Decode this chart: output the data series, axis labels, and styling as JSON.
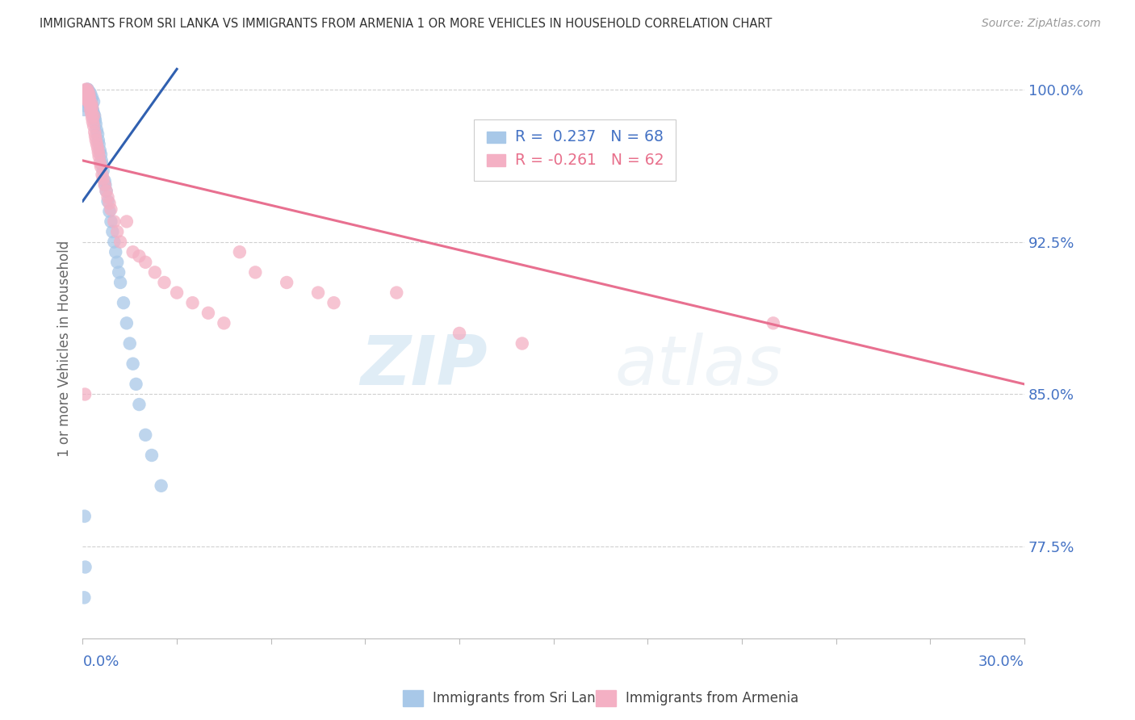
{
  "title": "IMMIGRANTS FROM SRI LANKA VS IMMIGRANTS FROM ARMENIA 1 OR MORE VEHICLES IN HOUSEHOLD CORRELATION CHART",
  "source": "Source: ZipAtlas.com",
  "ylabel_label": "1 or more Vehicles in Household",
  "xlim": [
    0.0,
    30.0
  ],
  "ylim": [
    73.0,
    101.5
  ],
  "sri_lanka_color": "#a8c8e8",
  "armenia_color": "#f4b0c4",
  "sri_lanka_line_color": "#3060b0",
  "armenia_line_color": "#e87090",
  "sri_lanka_x": [
    0.05,
    0.08,
    0.1,
    0.1,
    0.12,
    0.13,
    0.15,
    0.15,
    0.18,
    0.18,
    0.2,
    0.2,
    0.22,
    0.22,
    0.25,
    0.25,
    0.28,
    0.28,
    0.3,
    0.3,
    0.32,
    0.35,
    0.35,
    0.38,
    0.4,
    0.42,
    0.45,
    0.48,
    0.5,
    0.52,
    0.55,
    0.58,
    0.6,
    0.62,
    0.65,
    0.7,
    0.72,
    0.75,
    0.8,
    0.85,
    0.9,
    0.95,
    1.0,
    1.05,
    1.1,
    1.15,
    1.2,
    1.3,
    1.4,
    1.5,
    1.6,
    1.7,
    1.8,
    2.0,
    2.2,
    2.5,
    0.05,
    0.07,
    0.09,
    0.11,
    0.14,
    0.16,
    0.19,
    0.23,
    0.27,
    0.33,
    0.36,
    0.06
  ],
  "sri_lanka_y": [
    75.0,
    76.5,
    99.8,
    99.5,
    99.7,
    99.9,
    99.6,
    100.0,
    99.4,
    99.8,
    99.5,
    99.9,
    99.3,
    99.7,
    99.1,
    99.8,
    99.0,
    99.5,
    99.2,
    99.6,
    99.0,
    98.8,
    99.4,
    98.7,
    98.5,
    98.3,
    98.0,
    97.8,
    97.5,
    97.3,
    97.0,
    96.8,
    96.5,
    96.3,
    96.0,
    95.5,
    95.3,
    95.0,
    94.5,
    94.0,
    93.5,
    93.0,
    92.5,
    92.0,
    91.5,
    91.0,
    90.5,
    89.5,
    88.5,
    87.5,
    86.5,
    85.5,
    84.5,
    83.0,
    82.0,
    80.5,
    99.0,
    99.2,
    99.4,
    99.6,
    99.8,
    100.0,
    99.5,
    99.3,
    99.1,
    98.9,
    98.6,
    79.0
  ],
  "armenia_x": [
    0.05,
    0.08,
    0.1,
    0.1,
    0.12,
    0.13,
    0.15,
    0.15,
    0.18,
    0.18,
    0.2,
    0.2,
    0.22,
    0.22,
    0.25,
    0.25,
    0.28,
    0.28,
    0.3,
    0.3,
    0.32,
    0.35,
    0.35,
    0.38,
    0.4,
    0.42,
    0.45,
    0.48,
    0.5,
    0.52,
    0.55,
    0.58,
    0.62,
    0.65,
    0.7,
    0.75,
    0.8,
    0.85,
    0.9,
    1.0,
    1.1,
    1.2,
    1.4,
    1.6,
    1.8,
    2.0,
    2.3,
    2.6,
    3.0,
    3.5,
    4.0,
    4.5,
    5.0,
    5.5,
    6.5,
    7.5,
    8.0,
    10.0,
    12.0,
    14.0,
    22.0,
    0.07
  ],
  "armenia_y": [
    99.9,
    99.7,
    99.8,
    100.0,
    99.6,
    99.5,
    99.9,
    100.0,
    99.7,
    99.4,
    99.5,
    99.8,
    99.3,
    99.6,
    99.2,
    99.0,
    98.8,
    99.3,
    98.6,
    99.1,
    98.4,
    98.2,
    98.7,
    97.9,
    97.7,
    97.5,
    97.3,
    97.1,
    96.9,
    96.7,
    96.4,
    96.2,
    95.8,
    95.6,
    95.3,
    95.0,
    94.7,
    94.4,
    94.1,
    93.5,
    93.0,
    92.5,
    93.5,
    92.0,
    91.8,
    91.5,
    91.0,
    90.5,
    90.0,
    89.5,
    89.0,
    88.5,
    92.0,
    91.0,
    90.5,
    90.0,
    89.5,
    90.0,
    88.0,
    87.5,
    88.5,
    85.0
  ],
  "sri_trendline_x": [
    0.0,
    3.0
  ],
  "sri_trendline_y": [
    94.5,
    101.0
  ],
  "arm_trendline_x": [
    0.0,
    30.0
  ],
  "arm_trendline_y": [
    96.5,
    85.5
  ],
  "y_ticks": [
    77.5,
    85.0,
    92.5,
    100.0
  ],
  "y_tick_labels": [
    "77.5%",
    "85.0%",
    "92.5%",
    "100.0%"
  ],
  "legend_r_sri": "R =  0.237",
  "legend_n_sri": "N = 68",
  "legend_r_arm": "R = -0.261",
  "legend_n_arm": "N = 62",
  "watermark_zip": "ZIP",
  "watermark_atlas": "atlas",
  "title_color": "#333333",
  "source_color": "#999999",
  "tick_label_color": "#4472c4",
  "axis_label_color": "#666666",
  "grid_color": "#d0d0d0",
  "legend_text_color_sri": "#4472c4",
  "legend_text_color_arm": "#e8708c"
}
